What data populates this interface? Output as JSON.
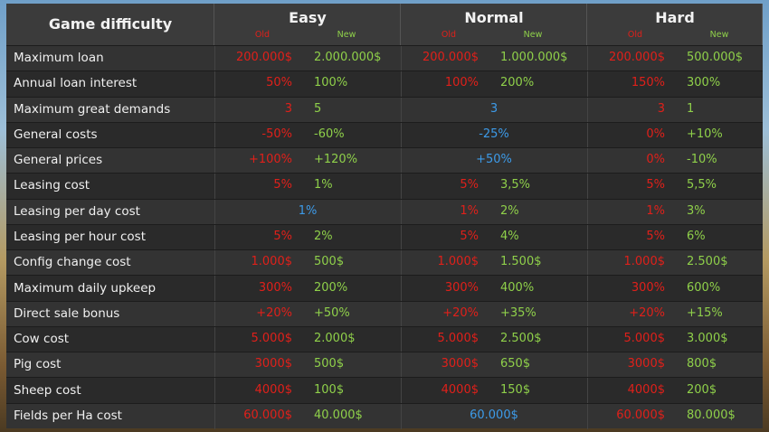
{
  "header": {
    "title": "Game difficulty",
    "columns": [
      "Easy",
      "Normal",
      "Hard"
    ],
    "old": "Old",
    "new": "New"
  },
  "table": {
    "rows": [
      {
        "label": "Maximum loan",
        "cells": [
          [
            "200.000$",
            "2.000.000$"
          ],
          [
            "200.000$",
            "1.000.000$"
          ],
          [
            "200.000$",
            "500.000$"
          ]
        ]
      },
      {
        "label": "Annual loan interest",
        "cells": [
          [
            "50%",
            "100%"
          ],
          [
            "100%",
            "200%"
          ],
          [
            "150%",
            "300%"
          ]
        ]
      },
      {
        "label": "Maximum great demands",
        "cells": [
          [
            "3",
            "5"
          ],
          [
            "3"
          ],
          [
            "3",
            "1"
          ]
        ]
      },
      {
        "label": "General costs",
        "cells": [
          [
            "-50%",
            "-60%"
          ],
          [
            "-25%"
          ],
          [
            "0%",
            "+10%"
          ]
        ]
      },
      {
        "label": "General prices",
        "cells": [
          [
            "+100%",
            "+120%"
          ],
          [
            "+50%"
          ],
          [
            "0%",
            "-10%"
          ]
        ]
      },
      {
        "label": "Leasing cost",
        "cells": [
          [
            "5%",
            "1%"
          ],
          [
            "5%",
            "3,5%"
          ],
          [
            "5%",
            "5,5%"
          ]
        ]
      },
      {
        "label": "Leasing per day cost",
        "cells": [
          [
            "1%"
          ],
          [
            "1%",
            "2%"
          ],
          [
            "1%",
            "3%"
          ]
        ]
      },
      {
        "label": "Leasing per hour cost",
        "cells": [
          [
            "5%",
            "2%"
          ],
          [
            "5%",
            "4%"
          ],
          [
            "5%",
            "6%"
          ]
        ]
      },
      {
        "label": "Config change cost",
        "cells": [
          [
            "1.000$",
            "500$"
          ],
          [
            "1.000$",
            "1.500$"
          ],
          [
            "1.000$",
            "2.500$"
          ]
        ]
      },
      {
        "label": "Maximum daily upkeep",
        "cells": [
          [
            "300%",
            "200%"
          ],
          [
            "300%",
            "400%"
          ],
          [
            "300%",
            "600%"
          ]
        ]
      },
      {
        "label": "Direct sale bonus",
        "cells": [
          [
            "+20%",
            "+50%"
          ],
          [
            "+20%",
            "+35%"
          ],
          [
            "+20%",
            "+15%"
          ]
        ]
      },
      {
        "label": "Cow cost",
        "cells": [
          [
            "5.000$",
            "2.000$"
          ],
          [
            "5.000$",
            "2.500$"
          ],
          [
            "5.000$",
            "3.000$"
          ]
        ]
      },
      {
        "label": "Pig cost",
        "cells": [
          [
            "3000$",
            "500$"
          ],
          [
            "3000$",
            "650$"
          ],
          [
            "3000$",
            "800$"
          ]
        ]
      },
      {
        "label": "Sheep cost",
        "cells": [
          [
            "4000$",
            "100$"
          ],
          [
            "4000$",
            "150$"
          ],
          [
            "4000$",
            "200$"
          ]
        ]
      },
      {
        "label": "Fields per Ha cost",
        "cells": [
          [
            "60.000$",
            "40.000$"
          ],
          [
            "60.000$"
          ],
          [
            "60.000$",
            "80.000$"
          ]
        ]
      }
    ]
  }
}
